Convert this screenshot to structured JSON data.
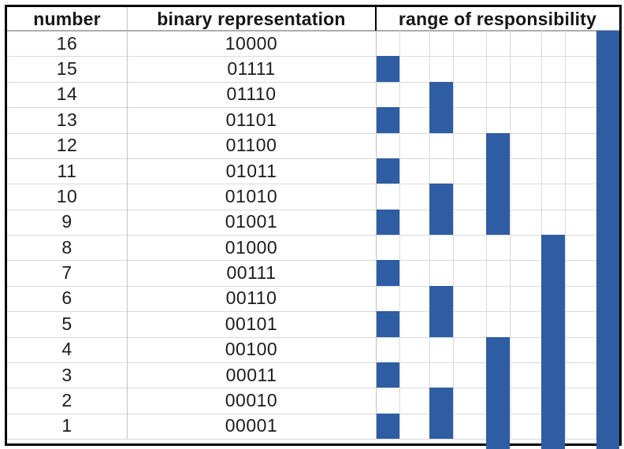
{
  "header": {
    "columns": [
      "number",
      "binary representation",
      "range of responsibility"
    ]
  },
  "rows": [
    {
      "number": "16",
      "binary": "10000"
    },
    {
      "number": "15",
      "binary": "01111"
    },
    {
      "number": "14",
      "binary": "01110"
    },
    {
      "number": "13",
      "binary": "01101"
    },
    {
      "number": "12",
      "binary": "01100"
    },
    {
      "number": "11",
      "binary": "01011"
    },
    {
      "number": "10",
      "binary": "01010"
    },
    {
      "number": "9",
      "binary": "01001"
    },
    {
      "number": "8",
      "binary": "01000"
    },
    {
      "number": "7",
      "binary": "00111"
    },
    {
      "number": "6",
      "binary": "00110"
    },
    {
      "number": "5",
      "binary": "00101"
    },
    {
      "number": "4",
      "binary": "00100"
    },
    {
      "number": "3",
      "binary": "00011"
    },
    {
      "number": "2",
      "binary": "00010"
    },
    {
      "number": "1",
      "binary": "00001"
    }
  ],
  "range_of_responsibility": {
    "description": "blue bars: each index covers the range [i - lowbit(i) + 1, i]",
    "columns": [
      {
        "lowbit": 1,
        "bars": [
          [
            15,
            15
          ],
          [
            13,
            13
          ],
          [
            11,
            11
          ],
          [
            9,
            9
          ],
          [
            7,
            7
          ],
          [
            5,
            5
          ],
          [
            3,
            3
          ],
          [
            1,
            1
          ]
        ]
      },
      {
        "lowbit": 2,
        "bars": [
          [
            14,
            13
          ],
          [
            10,
            9
          ],
          [
            6,
            5
          ],
          [
            2,
            1
          ]
        ]
      },
      {
        "lowbit": 4,
        "bars": [
          [
            12,
            9
          ],
          [
            4,
            1
          ]
        ]
      },
      {
        "lowbit": 8,
        "bars": [
          [
            8,
            1
          ]
        ]
      },
      {
        "lowbit": 16,
        "bars": [
          [
            16,
            1
          ]
        ]
      }
    ]
  },
  "colors": {
    "bar": "#2f5da3",
    "grid": "#d9d9d9",
    "divider": "#c2c2c2",
    "header_rule": "#adadad",
    "border": "#000000",
    "text": "#1c1c1c"
  }
}
